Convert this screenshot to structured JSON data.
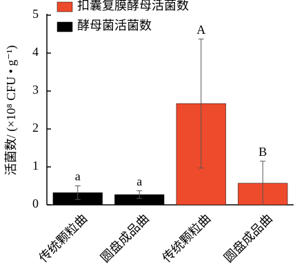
{
  "chart_data": {
    "type": "bar",
    "y_label": "活菌数/ (×10⁸ CFU • g⁻¹)",
    "categories": [
      "传统颗粒曲",
      "圆盘成品曲",
      "传统颗粒曲",
      "圆盘成品曲"
    ],
    "series": [
      {
        "name": "扣囊复膜酵母活菌数",
        "color": "#ee4a2c",
        "values": [
          null,
          null,
          2.67,
          0.57
        ],
        "errors": [
          null,
          null,
          1.7,
          0.58
        ]
      },
      {
        "name": "酵母菌活菌数",
        "color": "#000000",
        "values": [
          0.32,
          0.27,
          null,
          null
        ],
        "errors": [
          0.18,
          0.1,
          null,
          null
        ]
      }
    ],
    "significance": [
      "a",
      "a",
      "A",
      "B"
    ],
    "ylim": [
      0,
      5
    ],
    "yticks": [
      0,
      1,
      2,
      3,
      4,
      5
    ],
    "legend": "top"
  }
}
